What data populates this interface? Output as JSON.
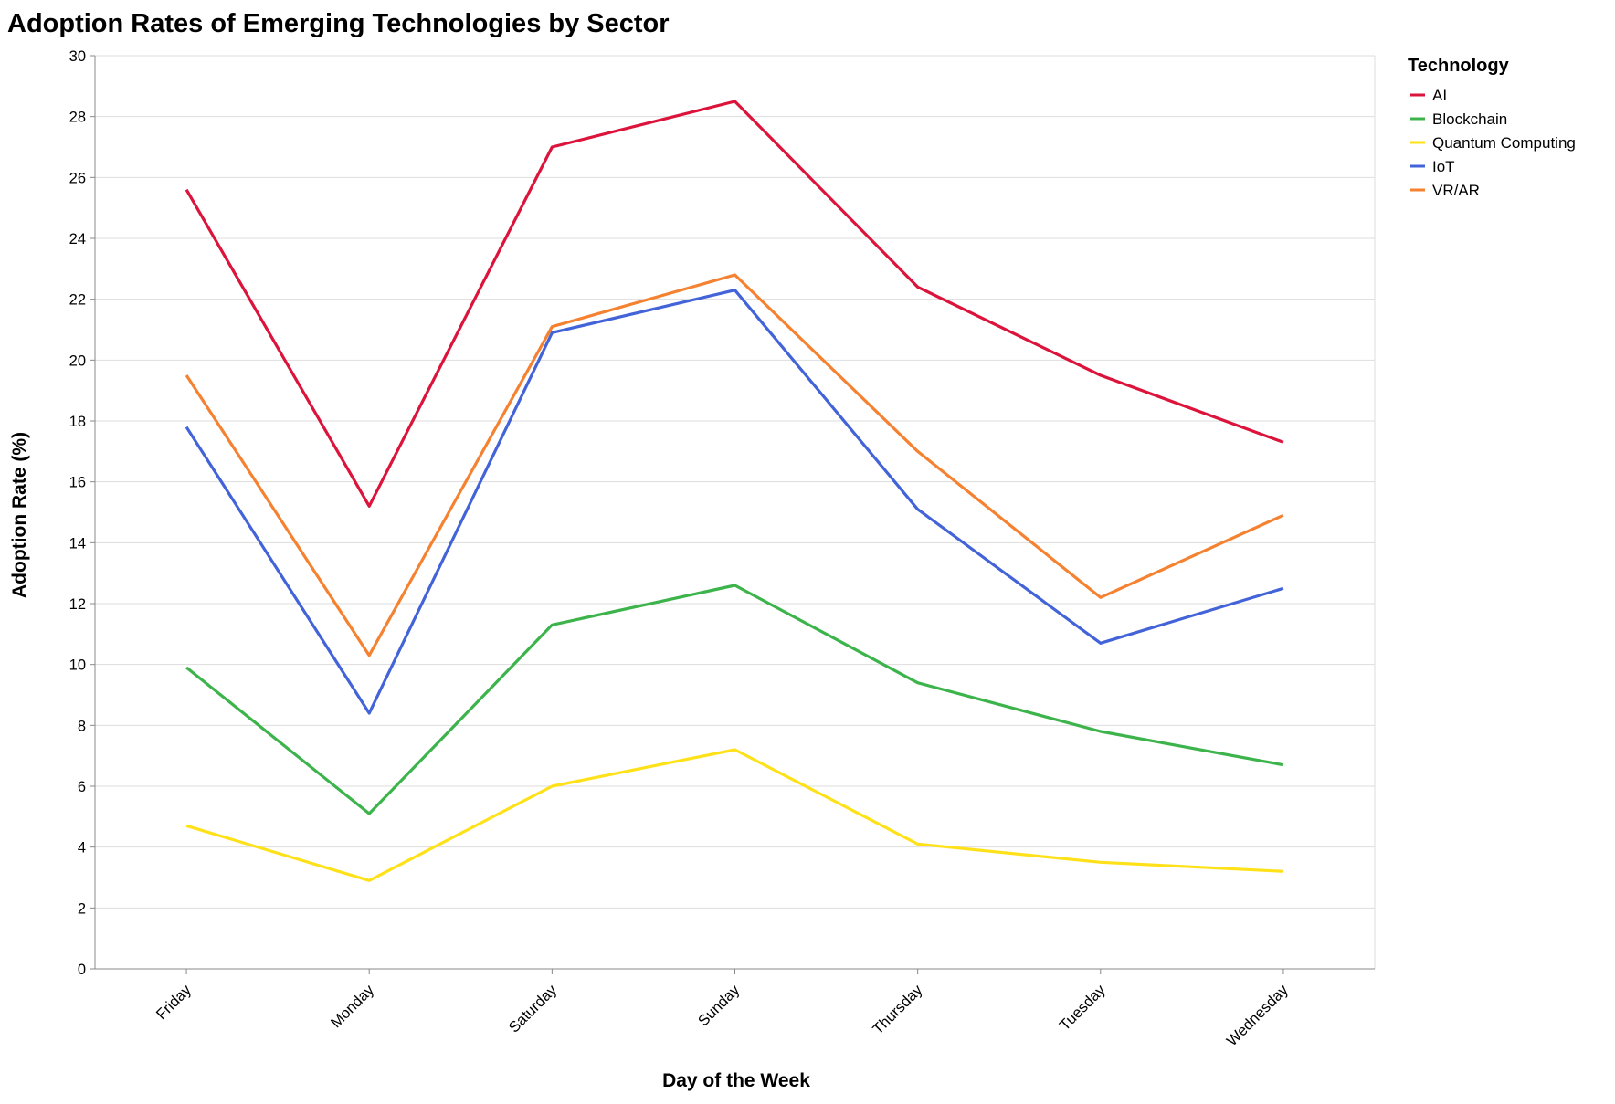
{
  "chart_data": {
    "type": "line",
    "title": "Adoption Rates of Emerging Technologies by Sector",
    "xlabel": "Day of the Week",
    "ylabel": "Adoption Rate (%)",
    "categories": [
      "Friday",
      "Monday",
      "Saturday",
      "Sunday",
      "Thursday",
      "Tuesday",
      "Wednesday"
    ],
    "ylim": [
      0,
      30
    ],
    "yticks": [
      0,
      2,
      4,
      6,
      8,
      10,
      12,
      14,
      16,
      18,
      20,
      22,
      24,
      26,
      28,
      30
    ],
    "grid": "horizontal",
    "legend": {
      "title": "Technology",
      "placement": "right"
    },
    "series": [
      {
        "name": "AI",
        "color": "#dc143c",
        "values": [
          25.6,
          15.2,
          27.0,
          28.5,
          22.4,
          19.5,
          17.3
        ]
      },
      {
        "name": "Blockchain",
        "color": "#3cb44b",
        "values": [
          9.9,
          5.1,
          11.3,
          12.6,
          9.4,
          7.8,
          6.7
        ]
      },
      {
        "name": "Quantum Computing",
        "color": "#ffe119",
        "values": [
          4.7,
          2.9,
          6.0,
          7.2,
          4.1,
          3.5,
          3.2
        ]
      },
      {
        "name": "IoT",
        "color": "#4363d8",
        "values": [
          17.8,
          8.4,
          20.9,
          22.3,
          15.1,
          10.7,
          12.5
        ]
      },
      {
        "name": "VR/AR",
        "color": "#f58231",
        "values": [
          19.5,
          10.3,
          21.1,
          22.8,
          17.0,
          12.2,
          14.9
        ]
      }
    ]
  }
}
